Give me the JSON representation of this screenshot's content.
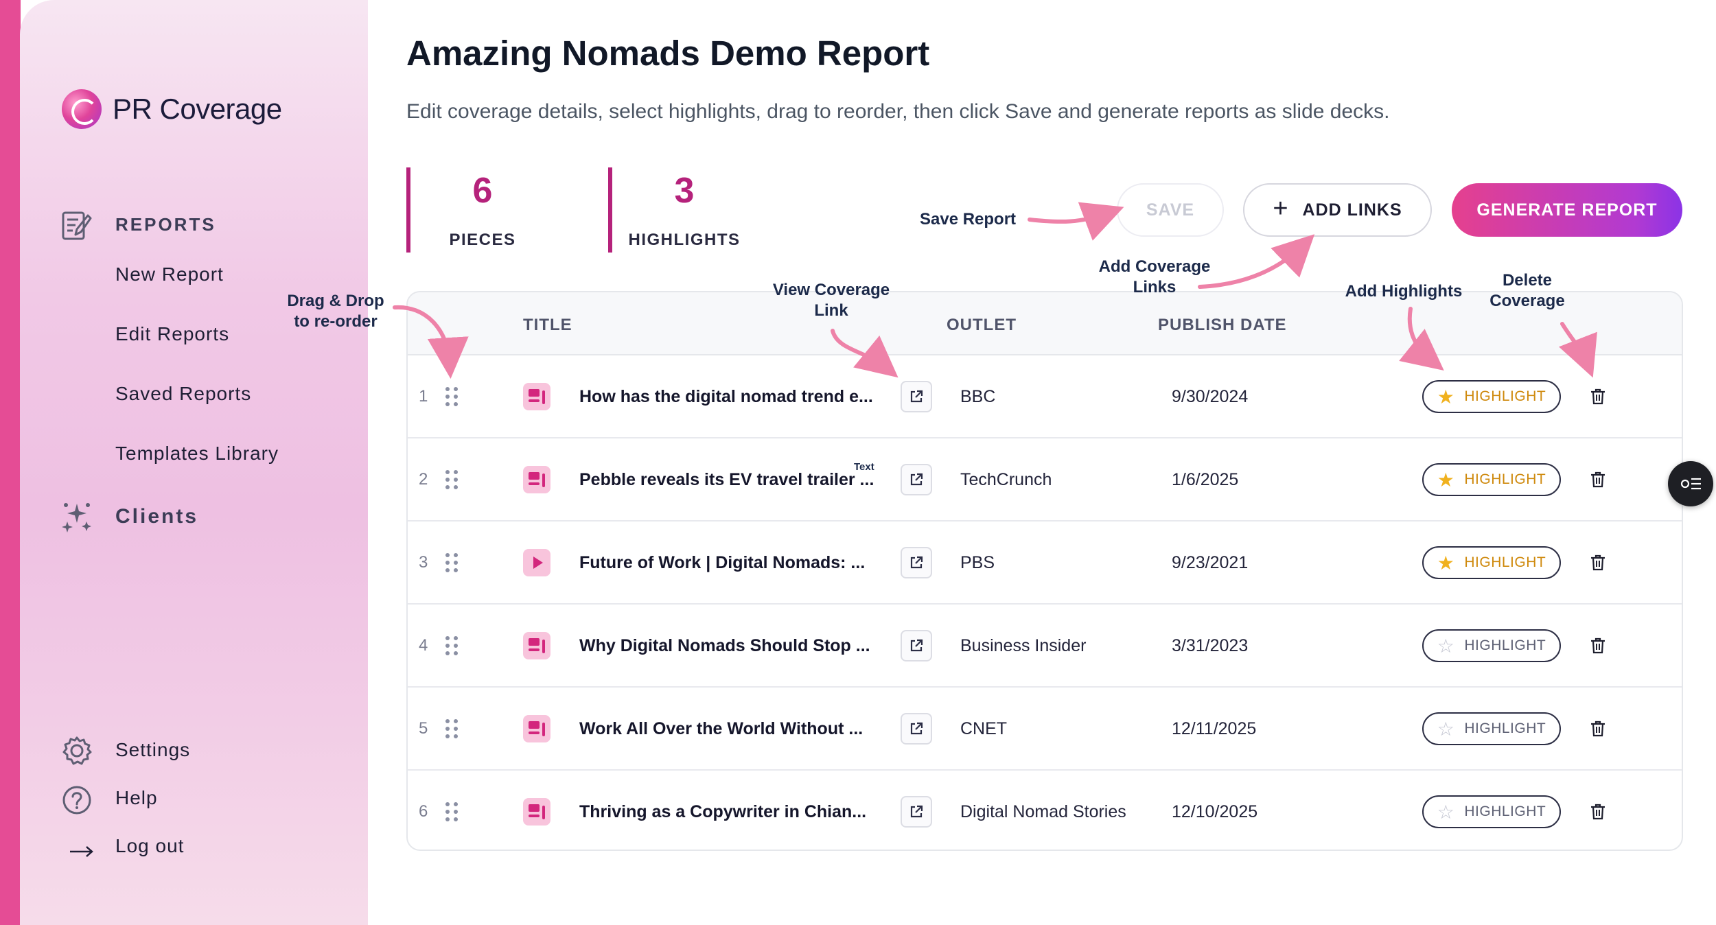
{
  "brand": {
    "name": "PR Coverage"
  },
  "sidebar": {
    "section_title": "REPORTS",
    "items": [
      {
        "label": "New Report"
      },
      {
        "label": "Edit Reports"
      },
      {
        "label": "Saved Reports"
      },
      {
        "label": "Templates Library"
      }
    ],
    "clients_label": "Clients",
    "bottom": [
      {
        "label": "Settings",
        "icon": "gear-icon"
      },
      {
        "label": "Help",
        "icon": "help-icon"
      },
      {
        "label": "Log out",
        "icon": "logout-arrow-icon"
      }
    ]
  },
  "page": {
    "title": "Amazing Nomads Demo Report",
    "subtitle": "Edit coverage details, select highlights, drag to reorder, then click Save and generate reports as slide decks."
  },
  "stats": {
    "pieces": {
      "value": "6",
      "label": "PIECES"
    },
    "highlights": {
      "value": "3",
      "label": "HIGHLIGHTS"
    }
  },
  "toolbar": {
    "save_label": "SAVE",
    "add_links_label": "ADD LINKS",
    "add_links_icon": "+",
    "generate_label": "GENERATE REPORT"
  },
  "table": {
    "headers": {
      "title": "TITLE",
      "outlet": "OUTLET",
      "publish_date": "PUBLISH DATE"
    },
    "highlight_label": "HIGHLIGHT",
    "rows": [
      {
        "index": "1",
        "type": "article",
        "title": "How has the digital nomad trend e...",
        "outlet": "BBC",
        "date": "9/30/2024",
        "highlighted": true
      },
      {
        "index": "2",
        "type": "article",
        "title": "Pebble reveals its EV travel trailer ...",
        "outlet": "TechCrunch",
        "date": "1/6/2025",
        "highlighted": true
      },
      {
        "index": "3",
        "type": "video",
        "title": "Future of Work | Digital Nomads: ...",
        "outlet": "PBS",
        "date": "9/23/2021",
        "highlighted": true
      },
      {
        "index": "4",
        "type": "article",
        "title": "Why Digital Nomads Should Stop ...",
        "outlet": "Business Insider",
        "date": "3/31/2023",
        "highlighted": false
      },
      {
        "index": "5",
        "type": "article",
        "title": "Work All Over the World Without ...",
        "outlet": "CNET",
        "date": "12/11/2025",
        "highlighted": false
      },
      {
        "index": "6",
        "type": "article",
        "title": "Thriving as a Copywriter in Chian...",
        "outlet": "Digital Nomad Stories",
        "date": "12/10/2025",
        "highlighted": false
      }
    ]
  },
  "annotations": {
    "save_report": "Save Report",
    "add_coverage_links": "Add Coverage Links",
    "drag_drop": "Drag & Drop to re-order",
    "view_coverage_link": "View Coverage Link",
    "add_highlights": "Add Highlights",
    "delete_coverage": "Delete Coverage",
    "text_tag": "Text"
  },
  "colors": {
    "accent": "#b5227b",
    "brand_pink": "#e54c95",
    "generate_gradient_start": "#e5408e",
    "generate_gradient_end": "#8b33e6",
    "annotation_arrow": "#ee82a8",
    "highlight_star": "#f0b11e"
  }
}
